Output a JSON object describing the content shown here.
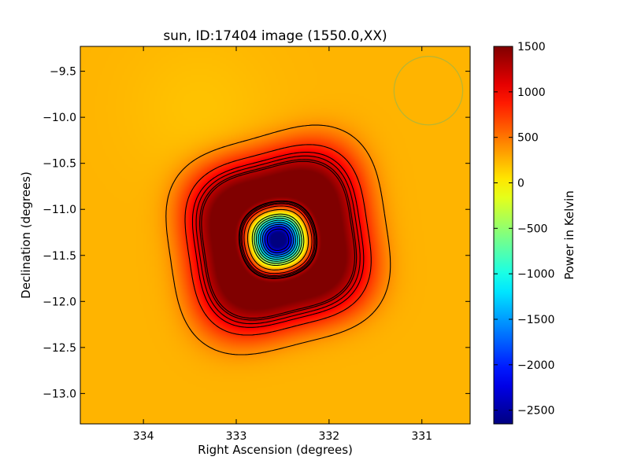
{
  "chart_data": {
    "type": "heatmap",
    "title": "sun, ID:17404 image (1550.0,XX)",
    "xlabel": "Right Ascension (degrees)",
    "ylabel": "Declination (degrees)",
    "colorbar_label": "Power in Kelvin",
    "xlim": [
      334.68,
      330.48
    ],
    "ylim": [
      -13.33,
      -9.23
    ],
    "x_ticks": [
      334,
      333,
      332,
      331
    ],
    "x_tick_labels": [
      "334",
      "333",
      "332",
      "331"
    ],
    "y_ticks": [
      -9.5,
      -10.0,
      -10.5,
      -11.0,
      -11.5,
      -12.0,
      -12.5,
      -13.0
    ],
    "y_tick_labels": [
      "−9.5",
      "−10.0",
      "−10.5",
      "−11.0",
      "−11.5",
      "−12.0",
      "−12.5",
      "−13.0"
    ],
    "colorbar_range": [
      -2650,
      1500
    ],
    "colorbar_ticks": [
      1500,
      1000,
      500,
      0,
      -500,
      -1000,
      -1500,
      -2000,
      -2500
    ],
    "colorbar_tick_labels": [
      "1500",
      "1000",
      "500",
      "0",
      "−500",
      "−1000",
      "−1500",
      "−2000",
      "−2500"
    ],
    "colormap": "jet",
    "background_level_kelvin": 250,
    "source_center": {
      "ra": 332.55,
      "dec": -11.33
    },
    "ring_peak_kelvin": 1350,
    "center_min_kelvin": -2600,
    "contours": {
      "positive_levels_kelvin": [
        400,
        800,
        1000,
        1100,
        1200,
        1250
      ],
      "negative_levels_kelvin": [
        -200,
        -500,
        -800,
        -1100,
        -1400,
        -1700,
        -2000,
        -2300
      ],
      "negative_style": "dashed",
      "color": "#000000"
    },
    "beam": {
      "ra": 330.93,
      "dec": -9.71,
      "radius_deg": 0.37,
      "color": "#b5b535"
    },
    "grid": false,
    "legend": "none"
  }
}
